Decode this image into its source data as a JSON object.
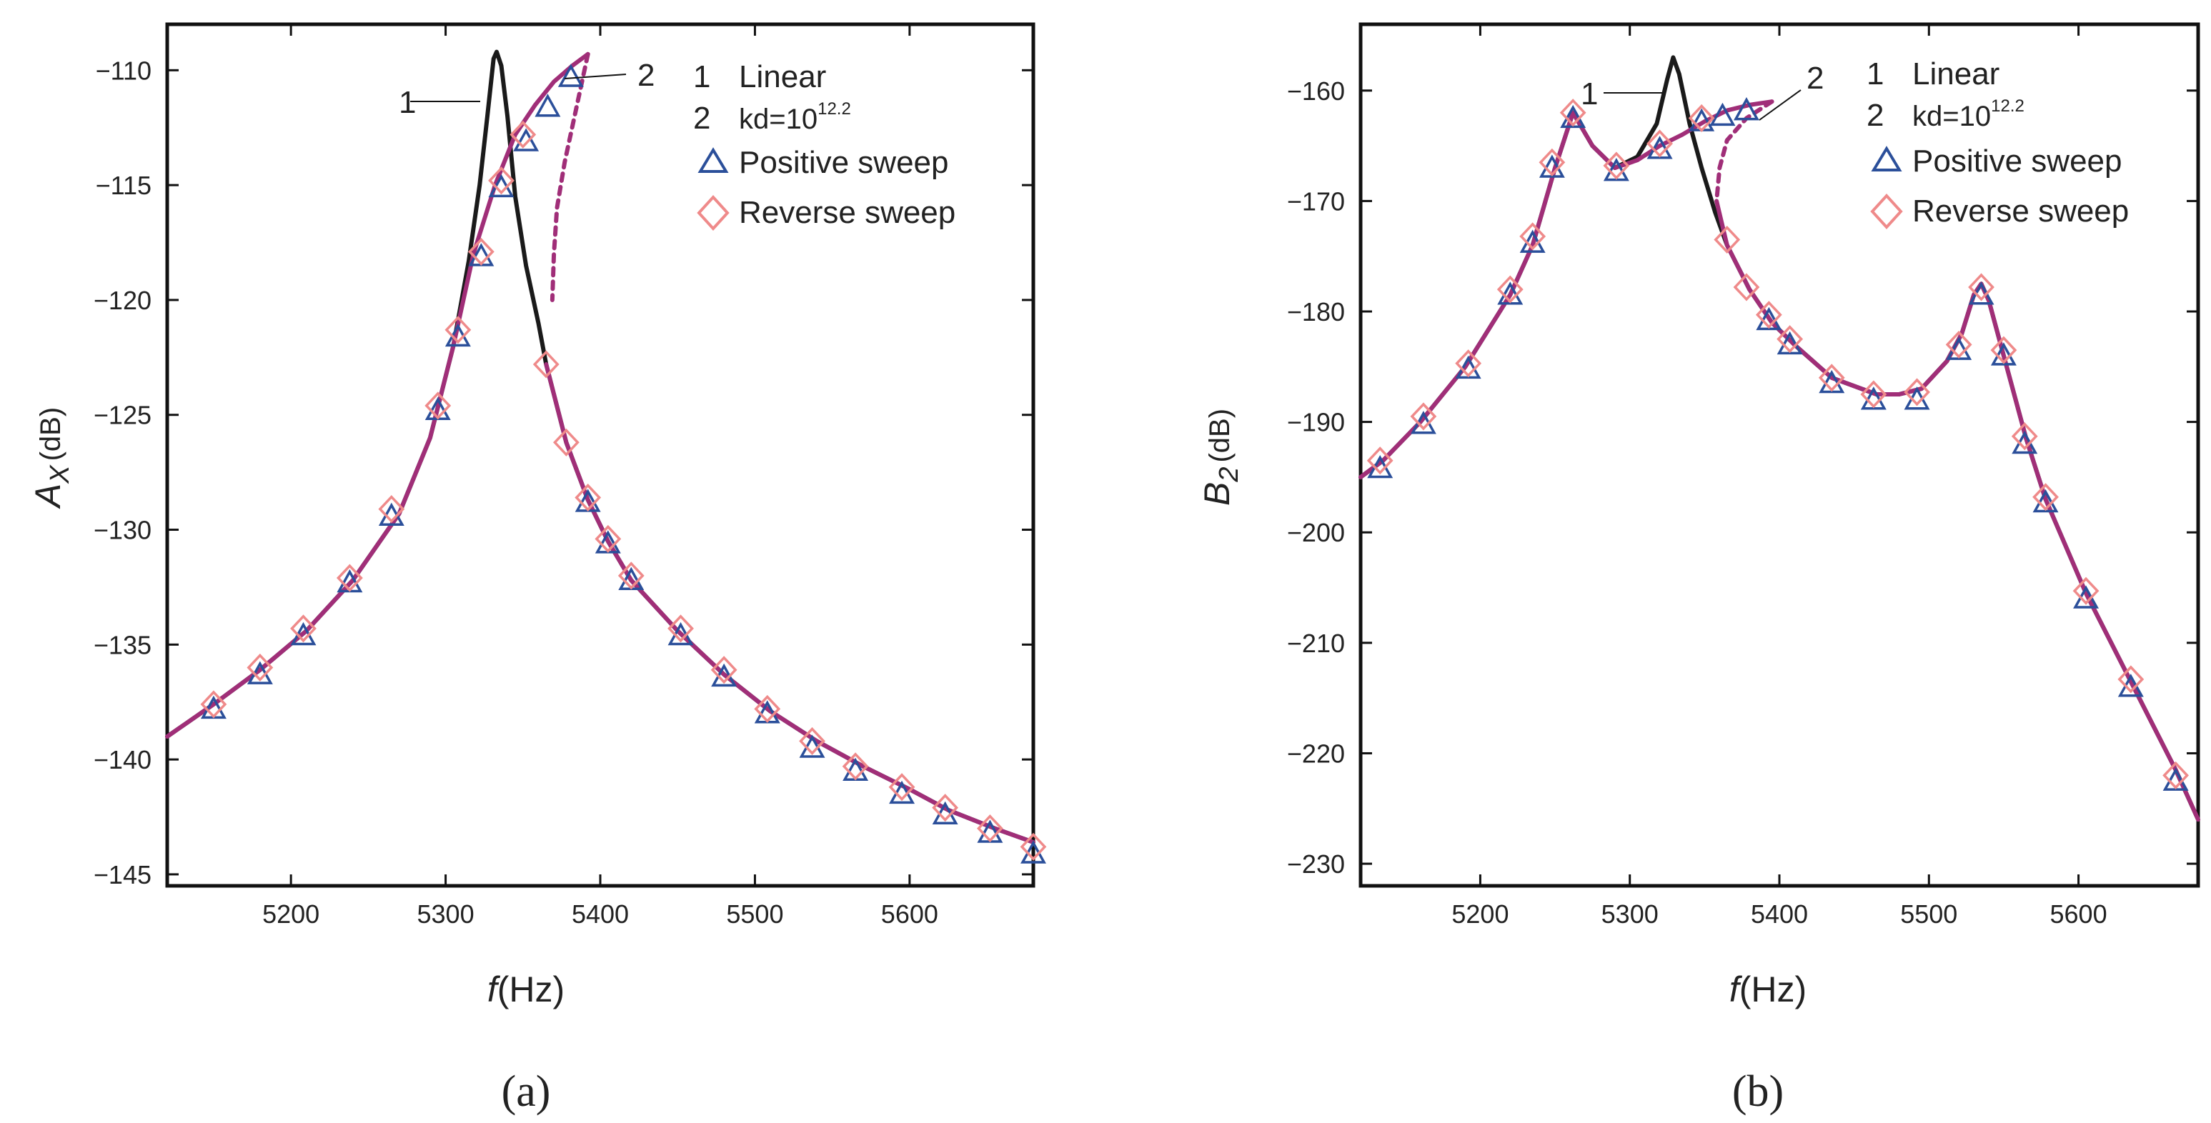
{
  "chart_data": [
    {
      "panel_label": "(a)",
      "type": "line",
      "xlabel_var": "f",
      "xlabel_unit": "(Hz)",
      "ylabel_var": "A",
      "ylabel_sub": "X",
      "ylabel_unit": "(dB)",
      "xlim": [
        5120,
        5680
      ],
      "ylim": [
        -145.5,
        -108
      ],
      "xticks": [
        5200,
        5300,
        5400,
        5500,
        5600
      ],
      "yticks": [
        -110,
        -115,
        -120,
        -125,
        -130,
        -135,
        -140,
        -145
      ],
      "legend": {
        "placement": "top-right",
        "line1_num": "1",
        "line1_label": "Linear",
        "line2_num": "2",
        "line2_label": "kd=10",
        "line2_sup": "12.2",
        "positive_label": "Positive sweep",
        "reverse_label": "Reverse sweep"
      },
      "annotations": {
        "curve1": "1",
        "curve2": "2"
      },
      "series": [
        {
          "name": "Linear",
          "color": "#1a1a1a",
          "style": "solid",
          "points": [
            [
              5120,
              -139
            ],
            [
              5150,
              -137.6
            ],
            [
              5180,
              -136.1
            ],
            [
              5210,
              -134.4
            ],
            [
              5240,
              -132.2
            ],
            [
              5270,
              -129.3
            ],
            [
              5290,
              -126
            ],
            [
              5305,
              -122
            ],
            [
              5315,
              -118.3
            ],
            [
              5322,
              -115
            ],
            [
              5327,
              -112
            ],
            [
              5331,
              -109.5
            ],
            [
              5333,
              -109.2
            ],
            [
              5336,
              -109.8
            ],
            [
              5340,
              -112
            ],
            [
              5345,
              -115.5
            ],
            [
              5352,
              -118.5
            ],
            [
              5360,
              -121
            ],
            [
              5365,
              -122.8
            ],
            [
              5378,
              -126.2
            ],
            [
              5392,
              -128.7
            ],
            [
              5405,
              -130.5
            ],
            [
              5420,
              -132.2
            ],
            [
              5450,
              -134.4
            ],
            [
              5480,
              -136.3
            ],
            [
              5510,
              -137.9
            ],
            [
              5540,
              -139.2
            ],
            [
              5570,
              -140.3
            ],
            [
              5600,
              -141.3
            ],
            [
              5625,
              -142.2
            ],
            [
              5655,
              -143
            ],
            [
              5680,
              -143.6
            ]
          ]
        },
        {
          "name": "kd=10^12.2",
          "color": "#a02e78",
          "style": "solid",
          "points": [
            [
              5120,
              -139
            ],
            [
              5150,
              -137.6
            ],
            [
              5180,
              -136.1
            ],
            [
              5210,
              -134.4
            ],
            [
              5240,
              -132.2
            ],
            [
              5270,
              -129.3
            ],
            [
              5290,
              -126
            ],
            [
              5305,
              -122
            ],
            [
              5318,
              -118
            ],
            [
              5332,
              -115
            ],
            [
              5345,
              -112.8
            ],
            [
              5358,
              -111.5
            ],
            [
              5370,
              -110.5
            ],
            [
              5382,
              -109.8
            ],
            [
              5392,
              -109.3
            ]
          ]
        },
        {
          "name": "kd=10^12.2 unstable branch",
          "color": "#a02e78",
          "style": "dashed",
          "points": [
            [
              5392,
              -109.3
            ],
            [
              5385,
              -111.5
            ],
            [
              5377,
              -114
            ],
            [
              5372,
              -116
            ],
            [
              5370,
              -118
            ],
            [
              5369,
              -120
            ]
          ]
        },
        {
          "name": "kd=10^12.2 lower branch",
          "color": "#a02e78",
          "style": "solid",
          "points": [
            [
              5365,
              -122.8
            ],
            [
              5378,
              -126.2
            ],
            [
              5392,
              -128.7
            ],
            [
              5405,
              -130.5
            ],
            [
              5420,
              -132.2
            ],
            [
              5450,
              -134.4
            ],
            [
              5480,
              -136.3
            ],
            [
              5510,
              -137.9
            ],
            [
              5540,
              -139.2
            ],
            [
              5570,
              -140.3
            ],
            [
              5600,
              -141.3
            ],
            [
              5625,
              -142.2
            ],
            [
              5655,
              -143
            ],
            [
              5680,
              -143.6
            ]
          ]
        }
      ],
      "positive_sweep": [
        [
          5150,
          -137.8
        ],
        [
          5180,
          -136.3
        ],
        [
          5208,
          -134.6
        ],
        [
          5238,
          -132.3
        ],
        [
          5265,
          -129.4
        ],
        [
          5295,
          -124.8
        ],
        [
          5308,
          -121.6
        ],
        [
          5323,
          -118.1
        ],
        [
          5336,
          -115.1
        ],
        [
          5352,
          -113.1
        ],
        [
          5366,
          -111.6
        ],
        [
          5381,
          -110.3
        ],
        [
          5392,
          -128.8
        ],
        [
          5405,
          -130.6
        ],
        [
          5420,
          -132.2
        ],
        [
          5452,
          -134.6
        ],
        [
          5480,
          -136.4
        ],
        [
          5508,
          -138
        ],
        [
          5537,
          -139.5
        ],
        [
          5565,
          -140.5
        ],
        [
          5595,
          -141.5
        ],
        [
          5623,
          -142.4
        ],
        [
          5652,
          -143.2
        ],
        [
          5680,
          -144.1
        ]
      ],
      "reverse_sweep": [
        [
          5150,
          -137.6
        ],
        [
          5180,
          -136
        ],
        [
          5208,
          -134.3
        ],
        [
          5238,
          -132.1
        ],
        [
          5265,
          -129.1
        ],
        [
          5295,
          -124.6
        ],
        [
          5308,
          -121.3
        ],
        [
          5323,
          -117.9
        ],
        [
          5336,
          -114.8
        ],
        [
          5350,
          -112.8
        ],
        [
          5365,
          -122.8
        ],
        [
          5378,
          -126.2
        ],
        [
          5392,
          -128.6
        ],
        [
          5405,
          -130.4
        ],
        [
          5420,
          -132
        ],
        [
          5452,
          -134.3
        ],
        [
          5480,
          -136.1
        ],
        [
          5508,
          -137.8
        ],
        [
          5537,
          -139.2
        ],
        [
          5565,
          -140.3
        ],
        [
          5595,
          -141.2
        ],
        [
          5623,
          -142.1
        ],
        [
          5652,
          -143
        ],
        [
          5680,
          -143.8
        ]
      ]
    },
    {
      "panel_label": "(b)",
      "type": "line",
      "xlabel_var": "f",
      "xlabel_unit": "(Hz)",
      "ylabel_var": "B",
      "ylabel_sub": "2",
      "ylabel_unit": "(dB)",
      "xlim": [
        5120,
        5680
      ],
      "ylim": [
        -232,
        -154
      ],
      "xticks": [
        5200,
        5300,
        5400,
        5500,
        5600
      ],
      "yticks": [
        -160,
        -170,
        -180,
        -190,
        -200,
        -210,
        -220,
        -230
      ],
      "legend": {
        "placement": "top-right",
        "line1_num": "1",
        "line1_label": "Linear",
        "line2_num": "2",
        "line2_label": "kd=10",
        "line2_sup": "12.2",
        "positive_label": "Positive sweep",
        "reverse_label": "Reverse sweep"
      },
      "annotations": {
        "curve1": "1",
        "curve2": "2"
      },
      "series": [
        {
          "name": "Linear",
          "color": "#1a1a1a",
          "style": "solid",
          "points": [
            [
              5120,
              -195
            ],
            [
              5135,
              -193.5
            ],
            [
              5160,
              -190
            ],
            [
              5190,
              -185
            ],
            [
              5220,
              -178.5
            ],
            [
              5235,
              -174
            ],
            [
              5250,
              -167
            ],
            [
              5262,
              -162
            ],
            [
              5275,
              -165
            ],
            [
              5290,
              -167
            ],
            [
              5305,
              -166
            ],
            [
              5318,
              -163
            ],
            [
              5325,
              -159
            ],
            [
              5329,
              -157
            ],
            [
              5333,
              -158.5
            ],
            [
              5340,
              -163
            ],
            [
              5348,
              -167
            ],
            [
              5357,
              -171
            ],
            [
              5365,
              -174
            ],
            [
              5380,
              -178
            ],
            [
              5395,
              -181
            ],
            [
              5410,
              -183
            ],
            [
              5435,
              -186
            ],
            [
              5465,
              -187.5
            ],
            [
              5480,
              -187.5
            ],
            [
              5495,
              -187
            ],
            [
              5512,
              -184.5
            ],
            [
              5522,
              -182
            ],
            [
              5530,
              -178.5
            ],
            [
              5535,
              -177.5
            ],
            [
              5540,
              -179
            ],
            [
              5550,
              -184
            ],
            [
              5565,
              -191.5
            ],
            [
              5578,
              -197
            ],
            [
              5605,
              -205.5
            ],
            [
              5635,
              -213.5
            ],
            [
              5665,
              -221.5
            ],
            [
              5680,
              -226
            ]
          ]
        },
        {
          "name": "kd=10^12.2",
          "color": "#a02e78",
          "style": "solid",
          "points": [
            [
              5120,
              -195
            ],
            [
              5135,
              -193.5
            ],
            [
              5160,
              -190
            ],
            [
              5190,
              -185
            ],
            [
              5220,
              -178.5
            ],
            [
              5235,
              -174
            ],
            [
              5250,
              -167
            ],
            [
              5262,
              -162
            ],
            [
              5275,
              -165
            ],
            [
              5290,
              -167
            ],
            [
              5305,
              -166.3
            ],
            [
              5320,
              -165
            ],
            [
              5335,
              -164
            ],
            [
              5350,
              -162.8
            ],
            [
              5365,
              -161.8
            ],
            [
              5380,
              -161.3
            ],
            [
              5395,
              -161
            ]
          ]
        },
        {
          "name": "kd=10^12.2 unstable branch",
          "color": "#a02e78",
          "style": "dashed",
          "points": [
            [
              5395,
              -161
            ],
            [
              5378,
              -162.5
            ],
            [
              5365,
              -164.5
            ],
            [
              5360,
              -167
            ],
            [
              5358,
              -170
            ]
          ]
        },
        {
          "name": "kd=10^12.2 lower branch",
          "color": "#a02e78",
          "style": "solid",
          "points": [
            [
              5358,
              -170
            ],
            [
              5365,
              -174
            ],
            [
              5380,
              -178
            ],
            [
              5395,
              -181
            ],
            [
              5410,
              -183
            ],
            [
              5435,
              -186
            ],
            [
              5465,
              -187.5
            ],
            [
              5480,
              -187.5
            ],
            [
              5495,
              -187
            ],
            [
              5512,
              -184.5
            ],
            [
              5522,
              -182
            ],
            [
              5530,
              -178.5
            ],
            [
              5535,
              -177.5
            ],
            [
              5540,
              -179
            ],
            [
              5550,
              -184
            ],
            [
              5565,
              -191.5
            ],
            [
              5578,
              -197
            ],
            [
              5605,
              -205.5
            ],
            [
              5635,
              -213.5
            ],
            [
              5665,
              -221.5
            ],
            [
              5680,
              -226
            ]
          ]
        }
      ],
      "positive_sweep": [
        [
          5133,
          -194.2
        ],
        [
          5162,
          -190.2
        ],
        [
          5192,
          -185.2
        ],
        [
          5220,
          -178.5
        ],
        [
          5235,
          -173.8
        ],
        [
          5248,
          -167
        ],
        [
          5262,
          -162.5
        ],
        [
          5291,
          -167.3
        ],
        [
          5320,
          -165.3
        ],
        [
          5348,
          -162.8
        ],
        [
          5362,
          -162.3
        ],
        [
          5378,
          -161.8
        ],
        [
          5393,
          -180.8
        ],
        [
          5407,
          -183
        ],
        [
          5435,
          -186.5
        ],
        [
          5463,
          -188
        ],
        [
          5492,
          -188
        ],
        [
          5520,
          -183.5
        ],
        [
          5535,
          -178.5
        ],
        [
          5550,
          -184
        ],
        [
          5564,
          -192
        ],
        [
          5578,
          -197.3
        ],
        [
          5605,
          -206
        ],
        [
          5635,
          -214
        ],
        [
          5665,
          -222.5
        ]
      ],
      "reverse_sweep": [
        [
          5133,
          -193.5
        ],
        [
          5162,
          -189.5
        ],
        [
          5192,
          -184.7
        ],
        [
          5220,
          -178
        ],
        [
          5235,
          -173.2
        ],
        [
          5248,
          -166.5
        ],
        [
          5262,
          -162
        ],
        [
          5291,
          -166.8
        ],
        [
          5320,
          -164.8
        ],
        [
          5348,
          -162.5
        ],
        [
          5365,
          -173.5
        ],
        [
          5378,
          -177.8
        ],
        [
          5393,
          -180.3
        ],
        [
          5407,
          -182.5
        ],
        [
          5435,
          -186
        ],
        [
          5463,
          -187.5
        ],
        [
          5492,
          -187.3
        ],
        [
          5520,
          -183
        ],
        [
          5535,
          -177.8
        ],
        [
          5550,
          -183.5
        ],
        [
          5564,
          -191.3
        ],
        [
          5578,
          -196.8
        ],
        [
          5605,
          -205.3
        ],
        [
          5635,
          -213.3
        ],
        [
          5665,
          -222
        ]
      ]
    }
  ],
  "colors": {
    "linear": "#1a1a1a",
    "nonlinear": "#a02e78",
    "positive_marker": "#2b4f9a",
    "reverse_marker": "#ef8a8a"
  }
}
